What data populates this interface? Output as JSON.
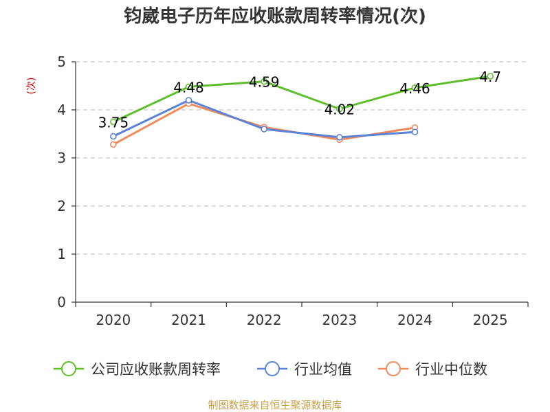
{
  "chart_data": {
    "type": "line",
    "title": "钧崴电子历年应收账款周转率情况(次)",
    "ylabel": "(次)",
    "xlabel": "",
    "categories": [
      "2020",
      "2021",
      "2022",
      "2023",
      "2024",
      "2025"
    ],
    "ylim": [
      0,
      5
    ],
    "yticks": [
      0,
      1,
      2,
      3,
      4,
      5
    ],
    "grid": true,
    "legend_position": "bottom",
    "series": [
      {
        "name": "公司应收账款周转率",
        "color": "#5cbf2a",
        "values": [
          3.75,
          4.48,
          4.59,
          4.02,
          4.46,
          4.7
        ],
        "labels": [
          "3.75",
          "4.48",
          "4.59",
          "4.02",
          "4.46",
          "4.7"
        ]
      },
      {
        "name": "行业均值",
        "color": "#5a82d8",
        "values": [
          3.45,
          4.2,
          3.6,
          3.43,
          3.54,
          null
        ]
      },
      {
        "name": "行业中位数",
        "color": "#f08a5a",
        "values": [
          3.28,
          4.13,
          3.64,
          3.38,
          3.63,
          null
        ]
      }
    ],
    "source": "制图数据来自恒生聚源数据库"
  }
}
